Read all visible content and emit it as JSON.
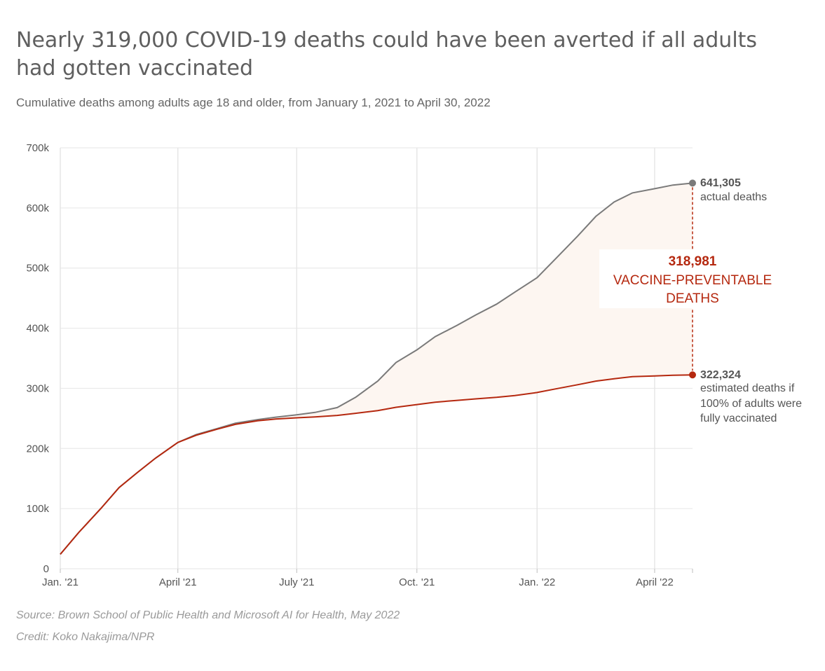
{
  "header": {
    "title": "Nearly 319,000 COVID-19 deaths could have been averted if all adults had gotten vaccinated",
    "subtitle": "Cumulative deaths among adults age 18 and older, from January 1, 2021 to April 30, 2022"
  },
  "footer": {
    "source": "Source: Brown School of Public Health and Microsoft AI for Health, May 2022",
    "credit": "Credit: Koko Nakajima/NPR"
  },
  "colors": {
    "actual": "#7a7a7a",
    "vaccinated": "#b5280f",
    "area_fill": "#fdf6f1",
    "grid": "#e6e6e6",
    "axis_text": "#555555",
    "annotation": "#b5280f"
  },
  "chart_data": {
    "type": "line",
    "title": "Nearly 319,000 COVID-19 deaths could have been averted if all adults had gotten vaccinated",
    "subtitle": "Cumulative deaths among adults age 18 and older, from January 1, 2021 to April 30, 2022",
    "xlabel": "",
    "ylabel": "",
    "x_range": [
      "2021-01-01",
      "2022-04-30"
    ],
    "ylim": [
      0,
      700000
    ],
    "y_ticks": [
      {
        "value": 0,
        "label": "0"
      },
      {
        "value": 100000,
        "label": "100k"
      },
      {
        "value": 200000,
        "label": "200k"
      },
      {
        "value": 300000,
        "label": "300k"
      },
      {
        "value": 400000,
        "label": "400k"
      },
      {
        "value": 500000,
        "label": "500k"
      },
      {
        "value": 600000,
        "label": "600k"
      },
      {
        "value": 700000,
        "label": "700k"
      }
    ],
    "x_ticks": [
      {
        "date": "2021-01-01",
        "label": "Jan. '21"
      },
      {
        "date": "2021-04-01",
        "label": "April '21"
      },
      {
        "date": "2021-07-01",
        "label": "July '21"
      },
      {
        "date": "2021-10-01",
        "label": "Oct. '21"
      },
      {
        "date": "2022-01-01",
        "label": "Jan. '22"
      },
      {
        "date": "2022-04-01",
        "label": "April '22"
      }
    ],
    "grid": true,
    "series": [
      {
        "key": "actual",
        "points": [
          [
            "2021-01-01",
            24000
          ],
          [
            "2021-01-15",
            60000
          ],
          [
            "2021-02-01",
            100000
          ],
          [
            "2021-02-15",
            135000
          ],
          [
            "2021-03-01",
            160000
          ],
          [
            "2021-03-15",
            184000
          ],
          [
            "2021-04-01",
            210000
          ],
          [
            "2021-04-15",
            223000
          ],
          [
            "2021-05-01",
            233000
          ],
          [
            "2021-05-15",
            242000
          ],
          [
            "2021-06-01",
            248000
          ],
          [
            "2021-06-15",
            252000
          ],
          [
            "2021-07-01",
            256000
          ],
          [
            "2021-07-15",
            260000
          ],
          [
            "2021-08-01",
            268000
          ],
          [
            "2021-08-15",
            285000
          ],
          [
            "2021-09-01",
            312000
          ],
          [
            "2021-09-15",
            343000
          ],
          [
            "2021-10-01",
            364000
          ],
          [
            "2021-10-15",
            386000
          ],
          [
            "2021-11-01",
            405000
          ],
          [
            "2021-11-15",
            422000
          ],
          [
            "2021-12-01",
            440000
          ],
          [
            "2021-12-15",
            460000
          ],
          [
            "2022-01-01",
            484000
          ],
          [
            "2022-01-15",
            515000
          ],
          [
            "2022-02-01",
            553000
          ],
          [
            "2022-02-15",
            586000
          ],
          [
            "2022-03-01",
            610000
          ],
          [
            "2022-03-15",
            625000
          ],
          [
            "2022-04-01",
            632000
          ],
          [
            "2022-04-15",
            638000
          ],
          [
            "2022-04-30",
            641305
          ]
        ]
      },
      {
        "key": "vaccinated",
        "points": [
          [
            "2021-01-01",
            24000
          ],
          [
            "2021-01-15",
            60000
          ],
          [
            "2021-02-01",
            100000
          ],
          [
            "2021-02-15",
            135000
          ],
          [
            "2021-03-01",
            160000
          ],
          [
            "2021-03-15",
            184000
          ],
          [
            "2021-04-01",
            210000
          ],
          [
            "2021-04-15",
            222000
          ],
          [
            "2021-05-01",
            232000
          ],
          [
            "2021-05-15",
            240000
          ],
          [
            "2021-06-01",
            246000
          ],
          [
            "2021-06-15",
            249000
          ],
          [
            "2021-07-01",
            251000
          ],
          [
            "2021-07-15",
            252500
          ],
          [
            "2021-08-01",
            255000
          ],
          [
            "2021-08-15",
            258500
          ],
          [
            "2021-09-01",
            263000
          ],
          [
            "2021-09-15",
            268500
          ],
          [
            "2021-10-01",
            273000
          ],
          [
            "2021-10-15",
            277000
          ],
          [
            "2021-11-01",
            280000
          ],
          [
            "2021-11-15",
            282500
          ],
          [
            "2021-12-01",
            285000
          ],
          [
            "2021-12-15",
            288000
          ],
          [
            "2022-01-01",
            293000
          ],
          [
            "2022-01-15",
            299000
          ],
          [
            "2022-02-01",
            306000
          ],
          [
            "2022-02-15",
            312000
          ],
          [
            "2022-03-01",
            316000
          ],
          [
            "2022-03-15",
            319500
          ],
          [
            "2022-04-01",
            320500
          ],
          [
            "2022-04-15",
            321800
          ],
          [
            "2022-04-30",
            322324
          ]
        ]
      }
    ],
    "annotations": {
      "actual_value": "641,305",
      "actual_label": "actual deaths",
      "vaccinated_value": "322,324",
      "vaccinated_label_lines": [
        "estimated deaths if",
        "100% of adults were",
        "fully vaccinated"
      ],
      "difference_value": "318,981",
      "difference_label_lines": [
        "VACCINE-PREVENTABLE",
        "DEATHS"
      ]
    }
  }
}
